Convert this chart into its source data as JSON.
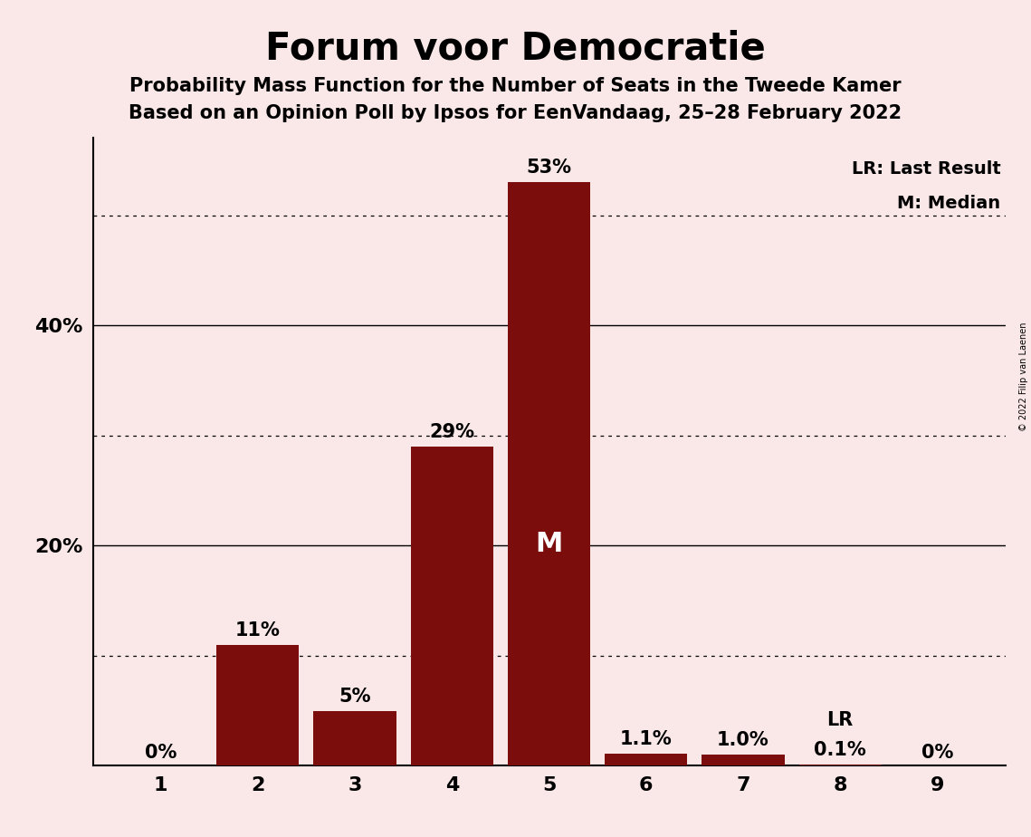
{
  "title": "Forum voor Democratie",
  "subtitle1": "Probability Mass Function for the Number of Seats in the Tweede Kamer",
  "subtitle2": "Based on an Opinion Poll by Ipsos for EenVandaag, 25–28 February 2022",
  "copyright": "© 2022 Filip van Laenen",
  "categories": [
    1,
    2,
    3,
    4,
    5,
    6,
    7,
    8,
    9
  ],
  "values": [
    0.0,
    11.0,
    5.0,
    29.0,
    53.0,
    1.1,
    1.0,
    0.1,
    0.0
  ],
  "bar_labels": [
    "0%",
    "11%",
    "5%",
    "29%",
    "53%",
    "1.1%",
    "1.0%",
    "0.1%",
    "0%"
  ],
  "bar_color": "#7B0D0D",
  "background_color": "#FAE8E8",
  "median_bar": 5,
  "lr_bar": 8,
  "median_label": "M",
  "lr_label": "LR",
  "legend_lr": "LR: Last Result",
  "legend_m": "M: Median",
  "yticks_labeled": [
    20,
    40
  ],
  "ytick_labels": [
    "20%",
    "40%"
  ],
  "dotted_lines": [
    10,
    30,
    50
  ],
  "solid_lines": [
    20,
    40
  ],
  "ylim": [
    0,
    57
  ],
  "title_fontsize": 30,
  "subtitle_fontsize": 15,
  "bar_label_fontsize": 15,
  "axis_tick_fontsize": 16,
  "legend_fontsize": 14,
  "median_label_fontsize": 22
}
